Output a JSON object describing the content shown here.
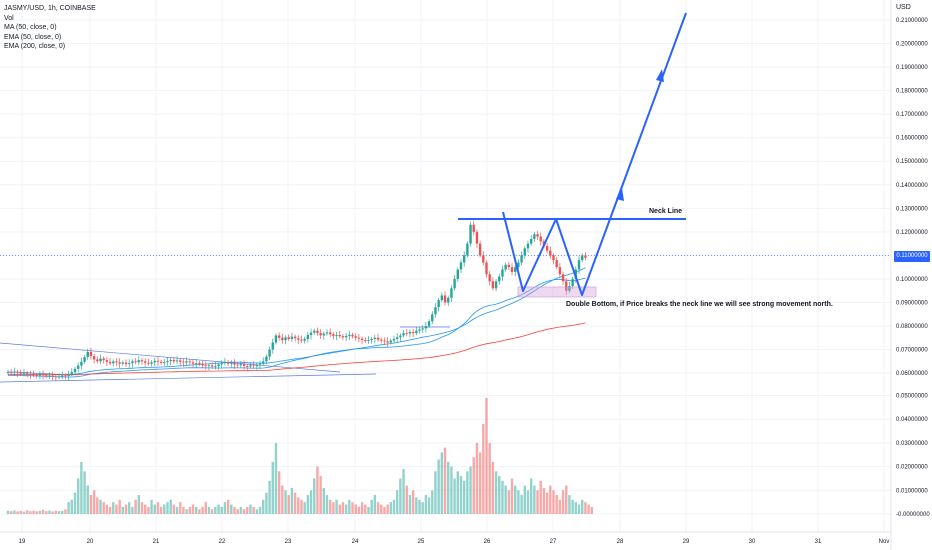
{
  "legend": {
    "symbol": "JASMY/USD, 1h, COINBASE",
    "vol": "Vol",
    "ma": "MA (50, close, 0)",
    "ema50": "EMA (50, close, 0)",
    "ema200": "EMA (200, close, 0)"
  },
  "currency": "USD",
  "last_price": "0.11000000",
  "annotations": {
    "neck_line": "Neck Line",
    "double_bottom": "Double Bottom, if Price breaks the neck line we will see strong movement north."
  },
  "colors": {
    "up": "#26a69a",
    "down": "#ef5350",
    "drawing": "#2962ff",
    "ema200": "#f44336",
    "ma": "#2196f3",
    "zone": "#ce93d8",
    "trend": "#5b7bdc"
  },
  "chart_data": {
    "type": "candlestick",
    "symbol": "JASMY/USD",
    "interval": "1h",
    "exchange": "COINBASE",
    "y_ticks": [
      "0.21000000",
      "0.20000000",
      "0.19000000",
      "0.18000000",
      "0.17000000",
      "0.16000000",
      "0.15000000",
      "0.14000000",
      "0.13000000",
      "0.12000000",
      "0.11000000",
      "0.10000000",
      "0.09000000",
      "0.08000000",
      "0.07000000",
      "0.06000000",
      "0.05000000",
      "0.04000000",
      "0.03000000",
      "0.02000000",
      "0.01000000",
      "-0.00000000"
    ],
    "x_ticks": [
      "19",
      "20",
      "21",
      "22",
      "23",
      "24",
      "25",
      "26",
      "27",
      "28",
      "29",
      "30",
      "31",
      "Nov"
    ],
    "price_range": [
      0.054,
      0.215
    ],
    "last_price": 0.11,
    "closes": [
      0.0605,
      0.0603,
      0.0606,
      0.0602,
      0.0598,
      0.0601,
      0.0597,
      0.0594,
      0.0592,
      0.0589,
      0.0595,
      0.0591,
      0.0587,
      0.059,
      0.0586,
      0.0584,
      0.0586,
      0.059,
      0.0588,
      0.0596,
      0.0604,
      0.0618,
      0.0632,
      0.0648,
      0.0668,
      0.069,
      0.0672,
      0.0658,
      0.065,
      0.0662,
      0.0655,
      0.0648,
      0.0642,
      0.065,
      0.0646,
      0.064,
      0.0645,
      0.0638,
      0.0642,
      0.065,
      0.0646,
      0.0655,
      0.065,
      0.0644,
      0.064,
      0.0646,
      0.0652,
      0.0648,
      0.0643,
      0.0647,
      0.0651,
      0.0656,
      0.065,
      0.0654,
      0.0648,
      0.0645,
      0.065,
      0.0646,
      0.064,
      0.0643,
      0.0638,
      0.0633,
      0.063,
      0.0633,
      0.0628,
      0.063,
      0.0637,
      0.0642,
      0.0647,
      0.064,
      0.0642,
      0.0636,
      0.0633,
      0.0638,
      0.063,
      0.0628,
      0.0633,
      0.063,
      0.0636,
      0.064,
      0.065,
      0.067,
      0.07,
      0.073,
      0.076,
      0.075,
      0.074,
      0.0752,
      0.0745,
      0.0755,
      0.0748,
      0.0742,
      0.0738,
      0.0745,
      0.0762,
      0.0772,
      0.078,
      0.077,
      0.076,
      0.0768,
      0.0773,
      0.0765,
      0.0758,
      0.0762,
      0.0757,
      0.0752,
      0.0758,
      0.0763,
      0.0756,
      0.075,
      0.0746,
      0.074,
      0.0736,
      0.074,
      0.0745,
      0.075,
      0.0742,
      0.0738,
      0.0735,
      0.073,
      0.0738,
      0.0745,
      0.0752,
      0.076,
      0.077,
      0.0768,
      0.0775,
      0.077,
      0.078,
      0.0785,
      0.079,
      0.08,
      0.082,
      0.085,
      0.088,
      0.091,
      0.093,
      0.09,
      0.092,
      0.096,
      0.1,
      0.104,
      0.107,
      0.11,
      0.115,
      0.123,
      0.12,
      0.115,
      0.11,
      0.107,
      0.102,
      0.099,
      0.096,
      0.099,
      0.101,
      0.104,
      0.106,
      0.105,
      0.103,
      0.105,
      0.107,
      0.11,
      0.113,
      0.115,
      0.117,
      0.119,
      0.118,
      0.116,
      0.114,
      0.112,
      0.11,
      0.108,
      0.105,
      0.102,
      0.099,
      0.095,
      0.097,
      0.1,
      0.104,
      0.108,
      0.11,
      0.109
    ],
    "volumes": [
      0.0014,
      0.0012,
      0.0015,
      0.0011,
      0.0013,
      0.001,
      0.0016,
      0.0012,
      0.0014,
      0.0011,
      0.0013,
      0.0018,
      0.0012,
      0.0015,
      0.0011,
      0.0014,
      0.0012,
      0.0013,
      0.002,
      0.005,
      0.006,
      0.009,
      0.015,
      0.022,
      0.018,
      0.012,
      0.008,
      0.01,
      0.007,
      0.006,
      0.005,
      0.004,
      0.003,
      0.005,
      0.004,
      0.006,
      0.003,
      0.004,
      0.005,
      0.003,
      0.006,
      0.008,
      0.005,
      0.004,
      0.003,
      0.006,
      0.004,
      0.005,
      0.003,
      0.004,
      0.005,
      0.006,
      0.004,
      0.003,
      0.005,
      0.003,
      0.002,
      0.003,
      0.004,
      0.003,
      0.002,
      0.003,
      0.005,
      0.003,
      0.002,
      0.003,
      0.004,
      0.003,
      0.005,
      0.006,
      0.004,
      0.003,
      0.002,
      0.003,
      0.002,
      0.003,
      0.004,
      0.003,
      0.002,
      0.003,
      0.006,
      0.009,
      0.014,
      0.022,
      0.03,
      0.018,
      0.012,
      0.01,
      0.008,
      0.011,
      0.009,
      0.007,
      0.006,
      0.005,
      0.008,
      0.01,
      0.015,
      0.02,
      0.016,
      0.011,
      0.008,
      0.006,
      0.005,
      0.006,
      0.004,
      0.005,
      0.004,
      0.006,
      0.005,
      0.004,
      0.003,
      0.005,
      0.004,
      0.003,
      0.006,
      0.008,
      0.005,
      0.004,
      0.003,
      0.004,
      0.005,
      0.006,
      0.01,
      0.015,
      0.019,
      0.012,
      0.008,
      0.01,
      0.007,
      0.006,
      0.005,
      0.008,
      0.007,
      0.01,
      0.018,
      0.023,
      0.026,
      0.028,
      0.022,
      0.02,
      0.015,
      0.018,
      0.016,
      0.014,
      0.018,
      0.02,
      0.024,
      0.03,
      0.026,
      0.038,
      0.049,
      0.03,
      0.022,
      0.018,
      0.016,
      0.014,
      0.012,
      0.01,
      0.015,
      0.012,
      0.01,
      0.008,
      0.012,
      0.01,
      0.015,
      0.012,
      0.01,
      0.014,
      0.011,
      0.009,
      0.012,
      0.01,
      0.008,
      0.006,
      0.01,
      0.012,
      0.008,
      0.006,
      0.005,
      0.004,
      0.006,
      0.005,
      0.004,
      0.003
    ],
    "neck_line": 0.1255,
    "volume_range": [
      -0.001,
      0.055
    ]
  }
}
